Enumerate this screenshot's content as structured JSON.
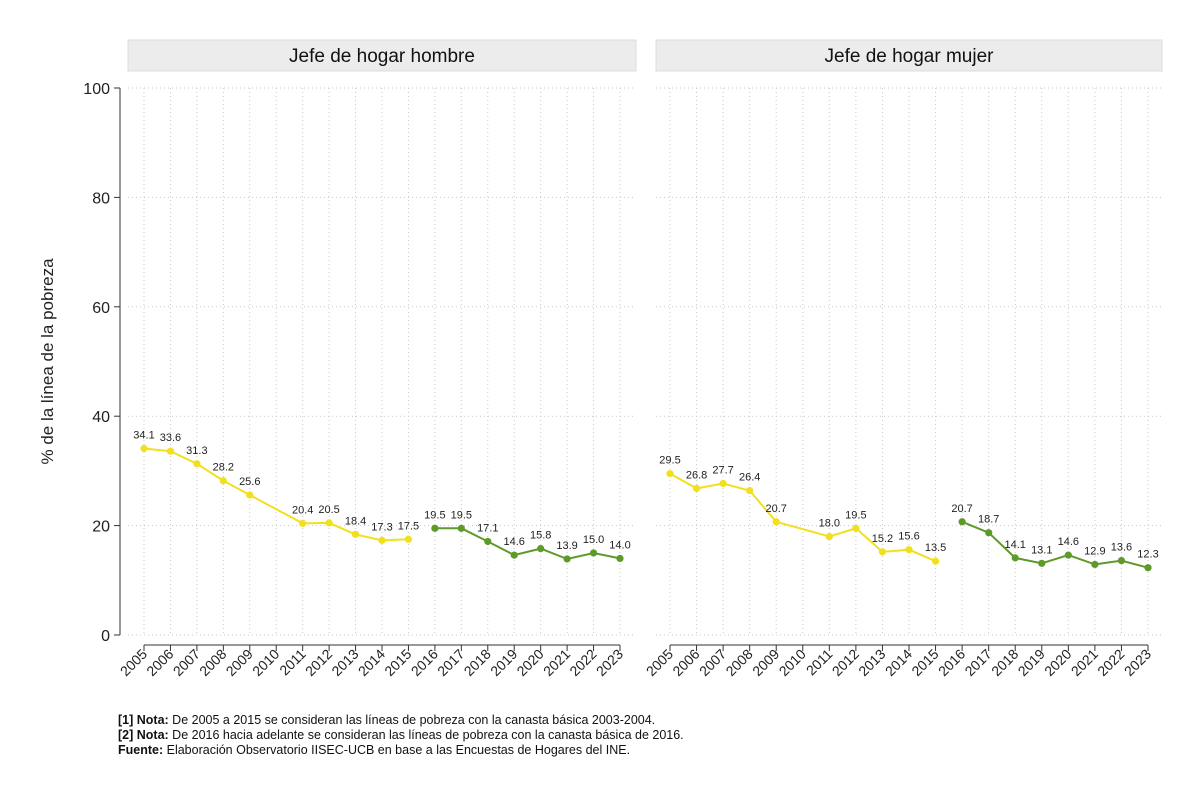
{
  "chart_data": {
    "type": "line",
    "ylabel": "% de la línea de la pobreza",
    "ylim": [
      0,
      100
    ],
    "yticks": [
      0,
      20,
      40,
      60,
      80,
      100
    ],
    "x": [
      "2005",
      "2006",
      "2007",
      "2008",
      "2009",
      "2010",
      "2011",
      "2012",
      "2013",
      "2014",
      "2015",
      "2016",
      "2017",
      "2018",
      "2019",
      "2020",
      "2021",
      "2022",
      "2023"
    ],
    "series_colors": {
      "canasta_2003_2004": "#f2df1e",
      "canasta_2016": "#5e9a2a"
    },
    "panels": [
      {
        "title": "Jefe de hogar hombre",
        "series": [
          {
            "name": "canasta_2003_2004",
            "points": [
              {
                "x": "2005",
                "y": 34.1,
                "label": "34.1"
              },
              {
                "x": "2006",
                "y": 33.6,
                "label": "33.6"
              },
              {
                "x": "2007",
                "y": 31.3,
                "label": "31.3"
              },
              {
                "x": "2008",
                "y": 28.2,
                "label": "28.2"
              },
              {
                "x": "2009",
                "y": 25.6,
                "label": "25.6"
              },
              {
                "x": "2011",
                "y": 20.4,
                "label": "20.4"
              },
              {
                "x": "2012",
                "y": 20.5,
                "label": "20.5"
              },
              {
                "x": "2013",
                "y": 18.4,
                "label": "18.4"
              },
              {
                "x": "2014",
                "y": 17.3,
                "label": "17.3"
              },
              {
                "x": "2015",
                "y": 17.5,
                "label": "17.5"
              }
            ]
          },
          {
            "name": "canasta_2016",
            "points": [
              {
                "x": "2016",
                "y": 19.5,
                "label": "19.5"
              },
              {
                "x": "2017",
                "y": 19.5,
                "label": "19.5"
              },
              {
                "x": "2018",
                "y": 17.1,
                "label": "17.1"
              },
              {
                "x": "2019",
                "y": 14.6,
                "label": "14.6"
              },
              {
                "x": "2020",
                "y": 15.8,
                "label": "15.8"
              },
              {
                "x": "2021",
                "y": 13.9,
                "label": "13.9"
              },
              {
                "x": "2022",
                "y": 15.0,
                "label": "15.0"
              },
              {
                "x": "2023",
                "y": 14.0,
                "label": "14.0"
              }
            ]
          }
        ]
      },
      {
        "title": "Jefe de hogar mujer",
        "series": [
          {
            "name": "canasta_2003_2004",
            "points": [
              {
                "x": "2005",
                "y": 29.5,
                "label": "29.5"
              },
              {
                "x": "2006",
                "y": 26.8,
                "label": "26.8"
              },
              {
                "x": "2007",
                "y": 27.7,
                "label": "27.7"
              },
              {
                "x": "2008",
                "y": 26.4,
                "label": "26.4"
              },
              {
                "x": "2009",
                "y": 20.7,
                "label": "20.7"
              },
              {
                "x": "2011",
                "y": 18.0,
                "label": "18.0"
              },
              {
                "x": "2012",
                "y": 19.5,
                "label": "19.5"
              },
              {
                "x": "2013",
                "y": 15.2,
                "label": "15.2"
              },
              {
                "x": "2014",
                "y": 15.6,
                "label": "15.6"
              },
              {
                "x": "2015",
                "y": 13.5,
                "label": "13.5"
              }
            ]
          },
          {
            "name": "canasta_2016",
            "points": [
              {
                "x": "2016",
                "y": 20.7,
                "label": "20.7"
              },
              {
                "x": "2017",
                "y": 18.7,
                "label": "18.7"
              },
              {
                "x": "2018",
                "y": 14.1,
                "label": "14.1"
              },
              {
                "x": "2019",
                "y": 13.1,
                "label": "13.1"
              },
              {
                "x": "2020",
                "y": 14.6,
                "label": "14.6"
              },
              {
                "x": "2021",
                "y": 12.9,
                "label": "12.9"
              },
              {
                "x": "2022",
                "y": 13.6,
                "label": "13.6"
              },
              {
                "x": "2023",
                "y": 12.3,
                "label": "12.3"
              }
            ]
          }
        ]
      }
    ]
  },
  "notes": {
    "note1_label": "[1] Nota:",
    "note1_text": " De 2005 a 2015 se consideran las líneas de pobreza con la canasta básica 2003-2004.",
    "note2_label": "[2] Nota:",
    "note2_text": " De 2016 hacia adelante se consideran las líneas de pobreza con la canasta básica de 2016.",
    "source_label": "Fuente:",
    "source_text": " Elaboración Observatorio IISEC-UCB en base a las Encuestas de Hogares del INE."
  }
}
